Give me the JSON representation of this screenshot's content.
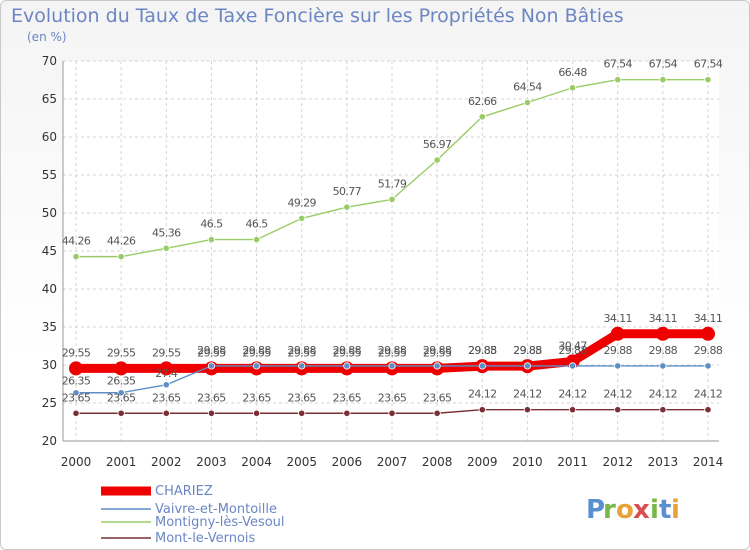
{
  "chart_data": {
    "type": "line",
    "title": "Evolution du Taux de Taxe Foncière sur les Propriétés Non Bâties",
    "subtitle": "(en %)",
    "xlabel": "",
    "ylabel": "(en %)",
    "ylim": [
      20,
      70
    ],
    "yticks": [
      20,
      25,
      30,
      35,
      40,
      45,
      50,
      55,
      60,
      65,
      70
    ],
    "categories": [
      "2000",
      "2001",
      "2002",
      "2003",
      "2004",
      "2005",
      "2006",
      "2007",
      "2008",
      "2009",
      "2010",
      "2011",
      "2012",
      "2013",
      "2014"
    ],
    "series": [
      {
        "name": "CHARIEZ",
        "color": "#ee0000",
        "values": [
          29.55,
          29.55,
          29.55,
          29.55,
          29.55,
          29.55,
          29.55,
          29.55,
          29.55,
          29.85,
          29.85,
          30.47,
          34.11,
          34.11,
          34.11
        ],
        "labels": [
          "29.55",
          "29.55",
          "29.55",
          "29.55",
          "29.55",
          "29.55",
          "29.55",
          "29.55",
          "29.55",
          "29.85",
          "29.85",
          "30.47",
          "34.11",
          "34.11",
          "34.11"
        ]
      },
      {
        "name": "Vaivre-et-Montoille",
        "color": "#5b8fc5",
        "values": [
          26.35,
          26.35,
          27.4,
          29.88,
          29.88,
          29.88,
          29.88,
          29.88,
          29.88,
          29.88,
          29.88,
          29.88,
          29.88,
          29.88,
          29.88
        ],
        "labels": [
          "26.35",
          "26.35",
          "27.4",
          "29.88",
          "29.88",
          "29.88",
          "29.88",
          "29.88",
          "29.88",
          "29.88",
          "29.88",
          "29.88",
          "29.88",
          "29.88",
          "29.88"
        ]
      },
      {
        "name": "Montigny-lès-Vesoul",
        "color": "#99cc66",
        "values": [
          44.26,
          44.26,
          45.36,
          46.5,
          46.5,
          49.29,
          50.77,
          51.79,
          56.97,
          62.66,
          64.54,
          66.48,
          67.54,
          67.54,
          67.54
        ],
        "labels": [
          "44.26",
          "44.26",
          "45.36",
          "46.5",
          "46.5",
          "49.29",
          "50.77",
          "51.79",
          "56.97",
          "62.66",
          "64.54",
          "66.48",
          "67.54",
          "67.54",
          "67.54"
        ]
      },
      {
        "name": "Mont-le-Vernois",
        "color": "#7a2e36",
        "values": [
          23.65,
          23.65,
          23.65,
          23.65,
          23.65,
          23.65,
          23.65,
          23.65,
          23.65,
          24.12,
          24.12,
          24.12,
          24.12,
          24.12,
          24.12
        ],
        "labels": [
          "23.65",
          "23.65",
          "23.65",
          "23.65",
          "23.65",
          "23.65",
          "23.65",
          "23.65",
          "23.65",
          "24.12",
          "24.12",
          "24.12",
          "24.12",
          "24.12",
          "24.12"
        ]
      }
    ],
    "grid": true,
    "legend": "bottom-left"
  },
  "logo": {
    "text": "Proxiti"
  }
}
